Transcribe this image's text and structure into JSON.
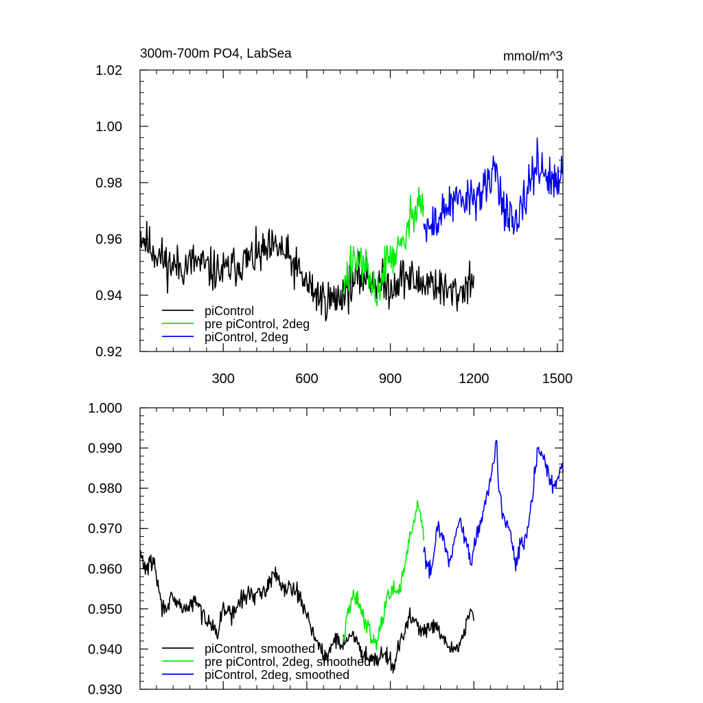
{
  "chart_data": [
    {
      "type": "line",
      "title": "300m-700m PO4, LabSea",
      "units": "mmol/m^3",
      "xlim": [
        1,
        1520
      ],
      "ylim": [
        0.92,
        1.02
      ],
      "x_ticks": [
        300,
        600,
        900,
        1200,
        1500
      ],
      "x_tick_labels": [
        "300",
        "600",
        "900",
        "1200",
        "1500"
      ],
      "y_ticks": [
        0.92,
        0.94,
        0.96,
        0.98,
        1.0,
        1.02
      ],
      "y_tick_labels": [
        "0.92",
        "0.94",
        "0.96",
        "0.98",
        "1.00",
        "1.02"
      ],
      "legend": [
        "piControl",
        "pre piControl, 2deg",
        "piControl, 2deg"
      ],
      "legend_position": "bottom-left",
      "series": [
        {
          "name": "piControl",
          "color": "#000000",
          "x": [
            1,
            30,
            60,
            100,
            150,
            200,
            250,
            300,
            350,
            400,
            450,
            500,
            550,
            600,
            650,
            700,
            750,
            800,
            850,
            900,
            950,
            1000,
            1050,
            1100,
            1150,
            1200
          ],
          "y": [
            0.962,
            0.958,
            0.955,
            0.951,
            0.95,
            0.952,
            0.949,
            0.948,
            0.951,
            0.953,
            0.955,
            0.957,
            0.951,
            0.944,
            0.939,
            0.938,
            0.943,
            0.947,
            0.945,
            0.943,
            0.947,
            0.944,
            0.945,
            0.941,
            0.941,
            0.947
          ]
        },
        {
          "name": "pre piControl, 2deg",
          "color": "#00ee00",
          "x": [
            730,
            760,
            790,
            820,
            850,
            880,
            910,
            940,
            970,
            1000,
            1020
          ],
          "y": [
            0.942,
            0.95,
            0.953,
            0.946,
            0.94,
            0.95,
            0.955,
            0.956,
            0.966,
            0.975,
            0.972
          ]
        },
        {
          "name": "piControl, 2deg",
          "color": "#0000ee",
          "x": [
            1020,
            1050,
            1080,
            1110,
            1150,
            1200,
            1250,
            1280,
            1300,
            1330,
            1350,
            1380,
            1400,
            1430,
            1450,
            1480,
            1500,
            1520
          ],
          "y": [
            0.963,
            0.964,
            0.968,
            0.972,
            0.973,
            0.975,
            0.978,
            0.986,
            0.974,
            0.966,
            0.963,
            0.972,
            0.981,
            0.987,
            0.985,
            0.979,
            0.98,
            0.983
          ]
        }
      ]
    },
    {
      "type": "line",
      "xlim": [
        1,
        1520
      ],
      "ylim": [
        0.93,
        1.0
      ],
      "x_ticks": [
        300,
        600,
        900,
        1200,
        1500
      ],
      "y_ticks": [
        0.93,
        0.94,
        0.95,
        0.96,
        0.97,
        0.98,
        0.99,
        1.0
      ],
      "y_tick_labels": [
        "0.930",
        "0.940",
        "0.950",
        "0.960",
        "0.970",
        "0.980",
        "0.990",
        "1.000"
      ],
      "legend": [
        "piControl, smoothed",
        "pre piControl, 2deg, smoothed",
        "piControl, 2deg, smoothed"
      ],
      "legend_position": "bottom-left",
      "series": [
        {
          "name": "piControl, smoothed",
          "color": "#000000",
          "x": [
            1,
            20,
            50,
            80,
            110,
            140,
            170,
            200,
            230,
            260,
            280,
            300,
            330,
            360,
            400,
            430,
            460,
            490,
            520,
            550,
            580,
            610,
            640,
            670,
            700,
            730,
            760,
            790,
            820,
            850,
            880,
            910,
            940,
            970,
            1000,
            1030,
            1060,
            1090,
            1120,
            1150,
            1170,
            1190,
            1200
          ],
          "y": [
            0.964,
            0.96,
            0.962,
            0.95,
            0.952,
            0.951,
            0.95,
            0.952,
            0.948,
            0.947,
            0.943,
            0.951,
            0.948,
            0.952,
            0.954,
            0.953,
            0.956,
            0.959,
            0.955,
            0.956,
            0.952,
            0.947,
            0.941,
            0.937,
            0.943,
            0.941,
            0.944,
            0.94,
            0.938,
            0.938,
            0.939,
            0.936,
            0.942,
            0.948,
            0.946,
            0.944,
            0.946,
            0.942,
            0.94,
            0.941,
            0.946,
            0.95,
            0.947
          ]
        },
        {
          "name": "pre piControl, 2deg, smoothed",
          "color": "#00ee00",
          "x": [
            730,
            750,
            770,
            790,
            810,
            830,
            850,
            870,
            890,
            910,
            930,
            950,
            970,
            990,
            1000,
            1020
          ],
          "y": [
            0.941,
            0.95,
            0.953,
            0.951,
            0.947,
            0.944,
            0.941,
            0.947,
            0.953,
            0.955,
            0.953,
            0.961,
            0.968,
            0.973,
            0.977,
            0.967
          ]
        },
        {
          "name": "piControl, 2deg, smoothed",
          "color": "#0000ee",
          "x": [
            1020,
            1035,
            1050,
            1070,
            1090,
            1110,
            1130,
            1150,
            1170,
            1190,
            1210,
            1230,
            1250,
            1270,
            1280,
            1290,
            1310,
            1330,
            1350,
            1370,
            1390,
            1410,
            1430,
            1450,
            1470,
            1490,
            1510,
            1520
          ],
          "y": [
            0.966,
            0.959,
            0.961,
            0.971,
            0.968,
            0.962,
            0.966,
            0.972,
            0.967,
            0.961,
            0.968,
            0.973,
            0.979,
            0.985,
            0.993,
            0.98,
            0.972,
            0.969,
            0.961,
            0.966,
            0.968,
            0.978,
            0.99,
            0.987,
            0.983,
            0.98,
            0.984,
            0.984
          ]
        }
      ]
    }
  ]
}
